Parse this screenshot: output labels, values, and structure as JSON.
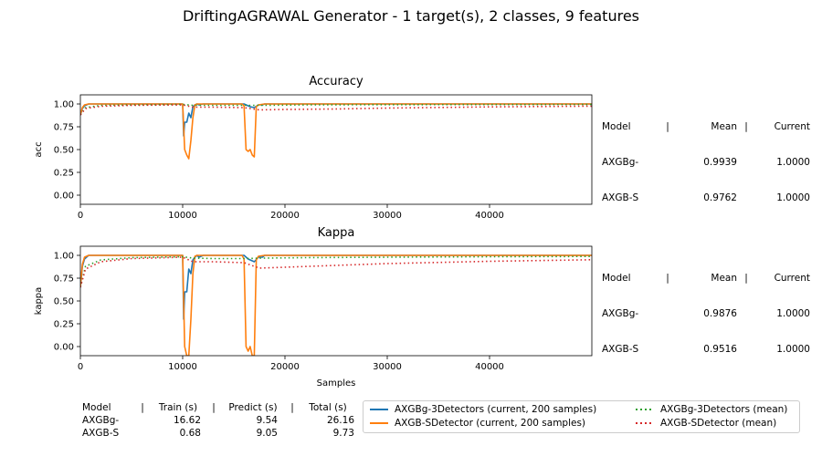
{
  "suptitle": "DriftingAGRAWAL Generator - 1 target(s), 2 classes, 9 features",
  "colors": {
    "AXGBg-3Detectors": "#1f77b4",
    "AXGB-SDetector": "#ff7f0e",
    "AXGBg_mean": "#2ca02c",
    "AXGBS_mean": "#d62728"
  },
  "chart_data": [
    {
      "type": "line",
      "title": "Accuracy",
      "xlabel": "",
      "ylabel": "acc",
      "xlim": [
        0,
        50000
      ],
      "ylim": [
        -0.1,
        1.1
      ],
      "xticks": [
        0,
        10000,
        20000,
        30000,
        40000
      ],
      "yticks": [
        "0.00",
        "0.25",
        "0.50",
        "0.75",
        "1.00"
      ],
      "ytick_values": [
        0,
        0.25,
        0.5,
        0.75,
        1.0
      ],
      "grid": false,
      "series": [
        {
          "name": "AXGBg-3Detectors (current, 200 samples)",
          "color": "#1f77b4",
          "style": "solid",
          "x": [
            0,
            200,
            400,
            800,
            2000,
            10000,
            10100,
            10200,
            10400,
            10600,
            10800,
            11000,
            11200,
            11400,
            11600,
            12000,
            14000,
            16000,
            16400,
            16600,
            17000,
            17400,
            17800,
            18000,
            20000,
            50000
          ],
          "y": [
            0.88,
            0.95,
            0.98,
            1.0,
            1.0,
            1.0,
            0.65,
            0.8,
            0.8,
            0.9,
            0.85,
            0.97,
            0.99,
            1.0,
            0.99,
            1.0,
            1.0,
            1.0,
            0.98,
            0.97,
            0.96,
            0.99,
            0.99,
            1.0,
            1.0,
            1.0
          ]
        },
        {
          "name": "AXGB-SDetector (current, 200 samples)",
          "color": "#ff7f0e",
          "style": "solid",
          "x": [
            0,
            200,
            400,
            800,
            2000,
            10000,
            10200,
            10400,
            10600,
            10800,
            11000,
            11200,
            11400,
            11600,
            12000,
            14000,
            15800,
            16000,
            16200,
            16400,
            16600,
            16800,
            17000,
            17200,
            17400,
            18000,
            20000,
            50000
          ],
          "y": [
            0.88,
            0.96,
            0.99,
            1.0,
            1.0,
            1.0,
            0.5,
            0.44,
            0.4,
            0.6,
            0.85,
            0.99,
            1.0,
            1.0,
            1.0,
            1.0,
            1.0,
            0.98,
            0.5,
            0.48,
            0.5,
            0.44,
            0.42,
            0.97,
            0.99,
            1.0,
            1.0,
            1.0
          ]
        },
        {
          "name": "AXGBg-3Detectors (mean)",
          "color": "#2ca02c",
          "style": "dotted",
          "x": [
            0,
            500,
            2000,
            5000,
            10000,
            11000,
            13000,
            16000,
            18000,
            22000,
            30000,
            40000,
            50000
          ],
          "y": [
            0.88,
            0.96,
            0.985,
            0.99,
            0.995,
            0.985,
            0.985,
            0.985,
            0.985,
            0.99,
            0.992,
            0.993,
            0.994
          ]
        },
        {
          "name": "AXGB-SDetector (mean)",
          "color": "#d62728",
          "style": "dotted",
          "x": [
            0,
            500,
            2000,
            5000,
            10000,
            11000,
            13000,
            16000,
            17500,
            20000,
            25000,
            30000,
            40000,
            50000
          ],
          "y": [
            0.88,
            0.95,
            0.975,
            0.985,
            0.99,
            0.965,
            0.965,
            0.96,
            0.935,
            0.94,
            0.945,
            0.955,
            0.968,
            0.976
          ]
        }
      ],
      "stats": {
        "header": [
          "Model",
          "|",
          "Mean",
          "|",
          "Current"
        ],
        "rows": [
          [
            "AXGBg-",
            "0.9939",
            "1.0000"
          ],
          [
            "AXGB-S",
            "0.9762",
            "1.0000"
          ]
        ]
      }
    },
    {
      "type": "line",
      "title": "Kappa",
      "xlabel": "Samples",
      "ylabel": "kappa",
      "xlim": [
        0,
        50000
      ],
      "ylim": [
        -0.1,
        1.1
      ],
      "xticks": [
        0,
        10000,
        20000,
        30000,
        40000
      ],
      "yticks": [
        "0.00",
        "0.25",
        "0.50",
        "0.75",
        "1.00"
      ],
      "ytick_values": [
        0,
        0.25,
        0.5,
        0.75,
        1.0
      ],
      "grid": false,
      "series": [
        {
          "name": "AXGBg-3Detectors (current, 200 samples)",
          "color": "#1f77b4",
          "style": "solid",
          "x": [
            0,
            200,
            400,
            800,
            2000,
            10000,
            10100,
            10200,
            10400,
            10600,
            10800,
            11000,
            11200,
            11400,
            11600,
            12000,
            14000,
            16000,
            16400,
            16600,
            17000,
            17400,
            17800,
            18000,
            20000,
            50000
          ],
          "y": [
            0.65,
            0.88,
            0.96,
            1.0,
            1.0,
            1.0,
            0.3,
            0.6,
            0.6,
            0.85,
            0.8,
            0.95,
            0.98,
            1.0,
            0.98,
            1.0,
            1.0,
            1.0,
            0.96,
            0.95,
            0.93,
            0.98,
            0.98,
            1.0,
            1.0,
            1.0
          ]
        },
        {
          "name": "AXGB-SDetector (current, 200 samples)",
          "color": "#ff7f0e",
          "style": "solid",
          "x": [
            0,
            200,
            400,
            800,
            2000,
            10000,
            10200,
            10400,
            10600,
            10800,
            11000,
            11200,
            11400,
            11600,
            12000,
            14000,
            15800,
            16000,
            16200,
            16400,
            16600,
            16800,
            17000,
            17200,
            17400,
            18000,
            20000,
            50000
          ],
          "y": [
            0.65,
            0.9,
            0.98,
            1.0,
            1.0,
            1.0,
            0.0,
            -0.1,
            -0.1,
            0.3,
            0.8,
            0.99,
            1.0,
            1.0,
            1.0,
            1.0,
            1.0,
            0.96,
            0.0,
            -0.05,
            0.0,
            -0.1,
            -0.1,
            0.95,
            0.99,
            1.0,
            1.0,
            1.0
          ]
        },
        {
          "name": "AXGBg-3Detectors (mean)",
          "color": "#2ca02c",
          "style": "dotted",
          "x": [
            0,
            500,
            2000,
            5000,
            10000,
            11000,
            13000,
            16000,
            18000,
            22000,
            30000,
            40000,
            50000
          ],
          "y": [
            0.65,
            0.88,
            0.95,
            0.975,
            0.985,
            0.97,
            0.965,
            0.965,
            0.97,
            0.975,
            0.98,
            0.985,
            0.988
          ]
        },
        {
          "name": "AXGB-SDetector (mean)",
          "color": "#d62728",
          "style": "dotted",
          "x": [
            0,
            500,
            2000,
            5000,
            10000,
            11000,
            13000,
            16000,
            17500,
            20000,
            25000,
            30000,
            40000,
            50000
          ],
          "y": [
            0.65,
            0.85,
            0.93,
            0.965,
            0.98,
            0.93,
            0.93,
            0.92,
            0.86,
            0.87,
            0.89,
            0.91,
            0.935,
            0.952
          ]
        }
      ],
      "stats": {
        "header": [
          "Model",
          "|",
          "Mean",
          "|",
          "Current"
        ],
        "rows": [
          [
            "AXGBg-",
            "0.9876",
            "1.0000"
          ],
          [
            "AXGB-S",
            "0.9516",
            "1.0000"
          ]
        ]
      }
    }
  ],
  "timing": {
    "header": [
      "Model",
      "|",
      "Train (s)",
      "|",
      "Predict (s)",
      "|",
      "Total (s)"
    ],
    "rows": [
      [
        "AXGBg-",
        "16.62",
        "9.54",
        "26.16"
      ],
      [
        "AXGB-S",
        "0.68",
        "9.05",
        "9.73"
      ]
    ]
  },
  "legend": [
    {
      "label": "AXGBg-3Detectors  (current, 200 samples)",
      "color": "#1f77b4",
      "style": "solid"
    },
    {
      "label": "AXGB-SDetector  (current, 200 samples)",
      "color": "#ff7f0e",
      "style": "solid"
    },
    {
      "label": "AXGBg-3Detectors (mean)",
      "color": "#2ca02c",
      "style": "dotted"
    },
    {
      "label": "AXGB-SDetector (mean)",
      "color": "#d62728",
      "style": "dotted"
    }
  ]
}
